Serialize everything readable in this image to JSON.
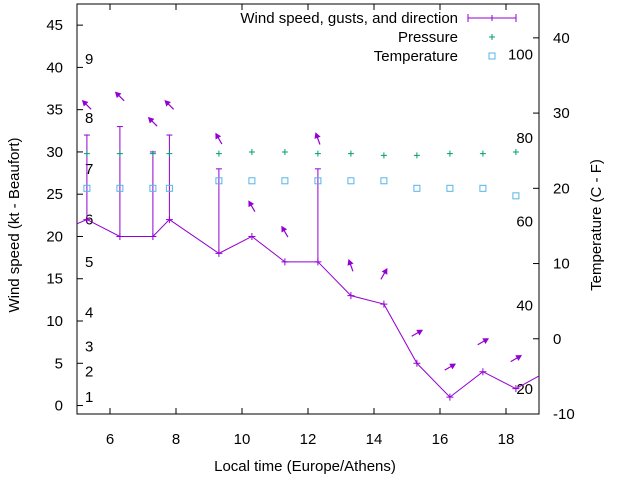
{
  "chart_data": {
    "type": "line",
    "xlabel": "Local time (Europe/Athens)",
    "ylabel": "Wind speed (kt - Beaufort)",
    "y2label": "Temperature (C - F)",
    "xlim": [
      5,
      19
    ],
    "ylim": [
      -1,
      47.5
    ],
    "y2lim": [
      -10,
      44.5
    ],
    "grid": false,
    "legend_position": "top-right",
    "x_ticks": [
      6,
      8,
      10,
      12,
      14,
      16,
      18
    ],
    "y_ticks": [
      0,
      5,
      10,
      15,
      20,
      25,
      30,
      35,
      40,
      45
    ],
    "y2_ticks": [
      -10,
      0,
      10,
      20,
      30,
      40
    ],
    "beaufort_labels": [
      {
        "label": "1",
        "kt": 1
      },
      {
        "label": "2",
        "kt": 4
      },
      {
        "label": "3",
        "kt": 7
      },
      {
        "label": "4",
        "kt": 11
      },
      {
        "label": "5",
        "kt": 17
      },
      {
        "label": "6",
        "kt": 22
      },
      {
        "label": "7",
        "kt": 28
      },
      {
        "label": "8",
        "kt": 34
      },
      {
        "label": "9",
        "kt": 41
      }
    ],
    "fahrenheit_labels": [
      {
        "label": "20",
        "c": -6.7
      },
      {
        "label": "40",
        "c": 4.4
      },
      {
        "label": "60",
        "c": 15.6
      },
      {
        "label": "80",
        "c": 26.7
      },
      {
        "label": "100",
        "c": 37.8
      }
    ],
    "series": [
      {
        "name": "Wind speed, gusts, and direction",
        "color": "#9400d3",
        "x": [
          5.3,
          6.3,
          7.3,
          7.8,
          9.3,
          10.3,
          11.3,
          12.3,
          13.3,
          14.3,
          15.3,
          16.3,
          17.3,
          18.3
        ],
        "wind": [
          22,
          20,
          20,
          22,
          18,
          20,
          17,
          17,
          13,
          12,
          5,
          1,
          4,
          2
        ],
        "gust": [
          32,
          33,
          30,
          32,
          28,
          20,
          17,
          28,
          13,
          12,
          5,
          1,
          4,
          2
        ],
        "direction_deg": [
          135,
          135,
          135,
          135,
          150,
          150,
          150,
          160,
          160,
          210,
          240,
          240,
          240,
          240
        ]
      },
      {
        "name": "Pressure",
        "color": "#009e73",
        "x": [
          5.3,
          6.3,
          7.3,
          7.8,
          9.3,
          10.3,
          11.3,
          12.3,
          13.3,
          14.3,
          15.3,
          16.3,
          17.3,
          18.3
        ],
        "y": [
          29.8,
          29.8,
          29.8,
          29.8,
          29.8,
          30,
          30,
          29.8,
          29.8,
          29.6,
          29.6,
          29.8,
          29.8,
          30
        ]
      },
      {
        "name": "Temperature",
        "color": "#56b4e9",
        "x": [
          5.3,
          6.3,
          7.3,
          7.8,
          9.3,
          10.3,
          11.3,
          12.3,
          13.3,
          14.3,
          15.3,
          16.3,
          17.3,
          18.3
        ],
        "y": [
          20,
          20,
          20,
          20,
          21,
          21,
          21,
          21,
          21,
          21,
          20,
          20,
          20,
          19
        ]
      }
    ]
  }
}
